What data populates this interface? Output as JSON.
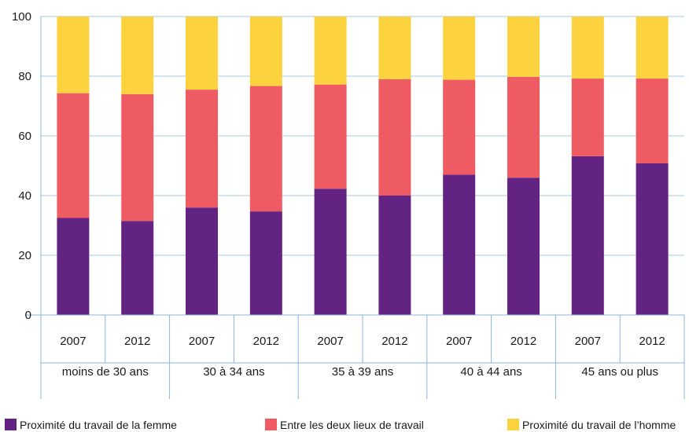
{
  "chart_data": {
    "type": "bar",
    "stacked": true,
    "ylim": [
      0,
      100
    ],
    "yticks": [
      0,
      20,
      40,
      60,
      80,
      100
    ],
    "grid": true,
    "legend_position": "bottom",
    "years": [
      "2007",
      "2012",
      "2007",
      "2012",
      "2007",
      "2012",
      "2007",
      "2012",
      "2007",
      "2012"
    ],
    "groups": [
      "moins de 30 ans",
      "30 à 34 ans",
      "35 à 39 ans",
      "40 à 44 ans",
      "45 ans ou plus"
    ],
    "series": [
      {
        "name": "Proximité du travail de la femme",
        "color": "#632383",
        "values": [
          32.5,
          31.5,
          36,
          34.7,
          42.3,
          40,
          47,
          46,
          53.2,
          50.8
        ]
      },
      {
        "name": "Entre les deux lieux de travail",
        "color": "#ef5b63",
        "values": [
          41.8,
          42.5,
          39.5,
          42,
          34.9,
          39,
          31.8,
          33.8,
          26,
          28.4
        ]
      },
      {
        "name": "Proximité du travail de l’homme",
        "color": "#fcd23e",
        "values": [
          25.7,
          26,
          24.5,
          23.3,
          22.8,
          21,
          21.2,
          20.2,
          20.8,
          20.8
        ]
      }
    ]
  }
}
